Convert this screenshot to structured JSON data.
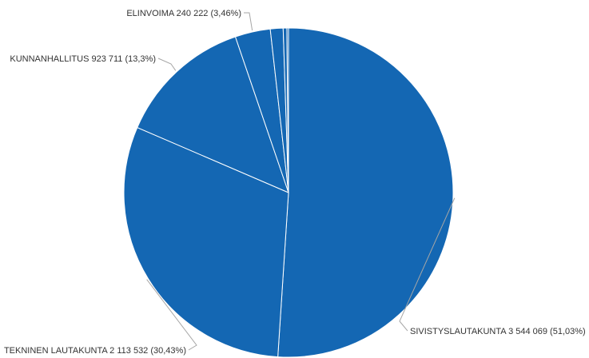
{
  "chart_data": {
    "type": "pie",
    "slice_color": "#1467b3",
    "border_color": "#ffffff",
    "leader_color": "#a6a6a6",
    "label_color": "#333333",
    "slices": [
      {
        "name": "SIVISTYSLAUTAKUNTA",
        "value": 3544069,
        "percent": 51.03,
        "label": "SIVISTYSLAUTAKUNTA 3 544 069 (51,03%)"
      },
      {
        "name": "TEKNINEN LAUTAKUNTA",
        "value": 2113532,
        "percent": 30.43,
        "label": "TEKNINEN LAUTAKUNTA 2 113 532 (30,43%)"
      },
      {
        "name": "KUNNANHALLITUS",
        "value": 923711,
        "percent": 13.3,
        "label": "KUNNANHALLITUS 923 711 (13,3%)"
      },
      {
        "name": "ELINVOIMA",
        "value": 240222,
        "percent": 3.46,
        "label": "ELINVOIMA 240 222 (3,46%)"
      },
      {
        "name": "",
        "value": 87000,
        "percent": 1.25,
        "label": ""
      },
      {
        "name": "",
        "value": 25000,
        "percent": 0.36,
        "label": ""
      },
      {
        "name": "",
        "value": 11000,
        "percent": 0.16,
        "label": ""
      }
    ]
  }
}
